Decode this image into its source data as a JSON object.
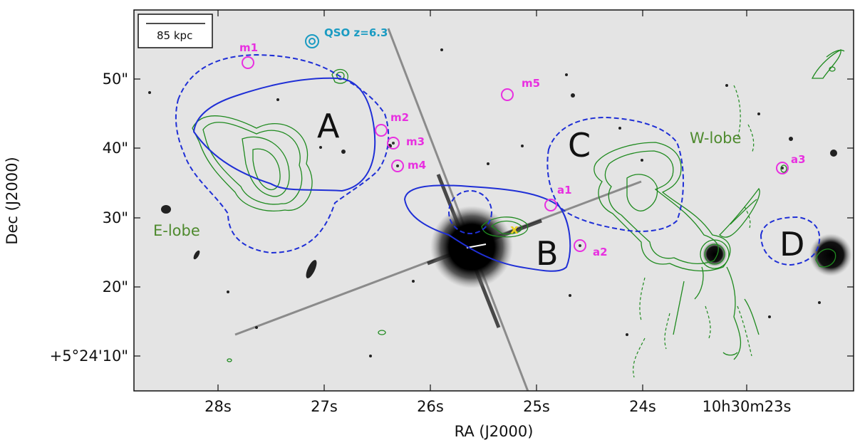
{
  "axes": {
    "xlabel": "RA (J2000)",
    "ylabel": "Dec (J2000)",
    "x_ticks": [
      "28s",
      "27s",
      "26s",
      "25s",
      "24s",
      "10h30m23s"
    ],
    "y_ticks": [
      "50\"",
      "40\"",
      "30\"",
      "20\"",
      "+5°24'10\""
    ]
  },
  "scale_bar": {
    "label": "85 kpc"
  },
  "qso": {
    "label": "QSO z=6.3",
    "color": "#1a9bc2"
  },
  "regions": {
    "A": "A",
    "B": "B",
    "C": "C",
    "D": "D",
    "border_color": "#1f2fd6"
  },
  "lobes": {
    "east": "E-lobe",
    "west": "W-lobe",
    "color": "#4e8a2e"
  },
  "sources": [
    {
      "id": "m1",
      "label": "m1"
    },
    {
      "id": "m2",
      "label": "m2"
    },
    {
      "id": "m3",
      "label": "m3"
    },
    {
      "id": "m4",
      "label": "m4"
    },
    {
      "id": "m5",
      "label": "m5"
    },
    {
      "id": "a1",
      "label": "a1"
    },
    {
      "id": "a2",
      "label": "a2"
    },
    {
      "id": "a3",
      "label": "a3"
    }
  ],
  "source_color": "#e830e0",
  "x_marker": {
    "label": "x",
    "color": "#e8d020"
  },
  "contour_color": "#1f8a1f"
}
